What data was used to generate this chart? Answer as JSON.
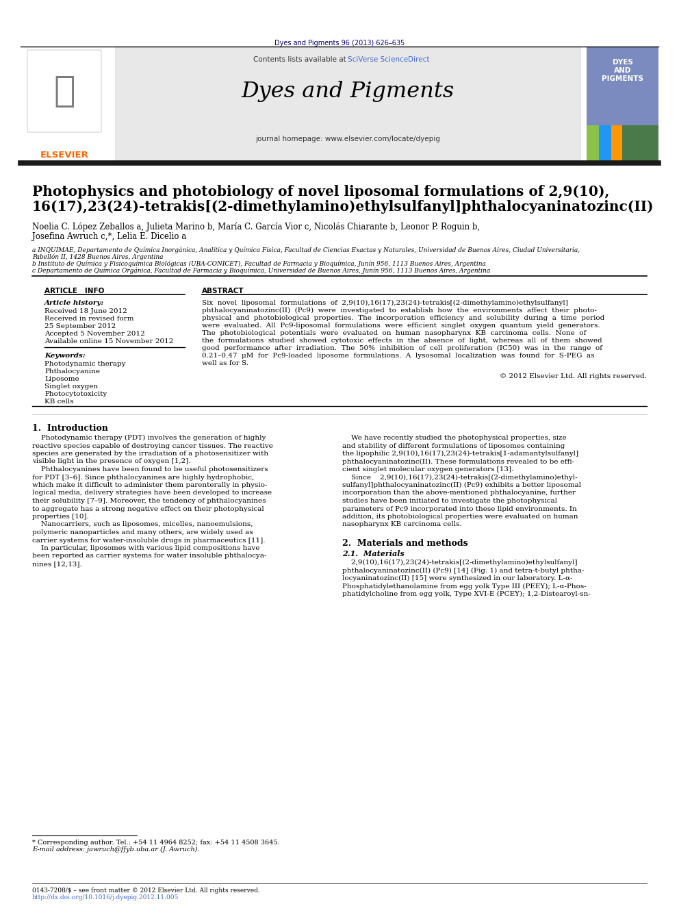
{
  "journal_ref": "Dyes and Pigments 96 (2013) 626–635",
  "journal_name": "Dyes and Pigments",
  "journal_homepage": "journal homepage: www.elsevier.com/locate/dyepig",
  "contents_text_pre": "Contents lists available at ",
  "contents_text_link": "SciVerse ScienceDirect",
  "elsevier_color": "#FF6600",
  "title_line1": "Photophysics and photobiology of novel liposomal formulations of 2,9(10),",
  "title_line2": "16(17),23(24)-tetrakis[(2-dimethylamino)ethylsulfanyl]phthalocyaninatozinc(II)",
  "authors": "Noelia C. López Zeballos a, Julieta Marino b, María C. García Vior c, Nicolás Chiarante b, Leonor P. Roguin b,",
  "authors2": "Josefina Awruch c,*, Lelia E. Dicelio a",
  "affil_a": "a INQUIMAE, Departamento de Química Inorgánica, Analítica y Química Física, Facultad de Ciencias Exactas y Naturales, Universidad de Buenos Aires, Ciudad Universitaria,",
  "affil_a2": "Pabellón II, 1428 Buenos Aires, Argentina",
  "affil_b": "b Instituto de Química y Fisicoquímica Biológicas (UBA-CONICET), Facultad de Farmacia y Bioquímica, Junín 956, 1113 Buenos Aires, Argentina",
  "affil_c": "c Departamento de Química Orgánica, Facultad de Farmacia y Bioquímica, Universidad de Buenos Aires, Junín 956, 1113 Buenos Aires, Argentina",
  "article_info_header": "ARTICLE   INFO",
  "abstract_header": "ABSTRACT",
  "article_history_label": "Article history:",
  "received1": "Received 18 June 2012",
  "received2": "Received in revised form",
  "received2b": "25 September 2012",
  "accepted": "Accepted 5 November 2012",
  "available": "Available online 15 November 2012",
  "keywords_label": "Keywords:",
  "keywords": [
    "Photodynamic therapy",
    "Phthalocyanine",
    "Liposome",
    "Singlet oxygen",
    "Photocytotoxicity",
    "KB cells"
  ],
  "abstract_lines": [
    "Six  novel  liposomal  formulations  of  2,9(10),16(17),23(24)-tetrakis[(2-dimethylamino)ethylsulfanyl]",
    "phthalocyaninatozinc(II)  (Pc9)  were  investigated  to  establish  how  the  environments  affect  their  photo-",
    "physical  and  photobiological  properties.  The  incorporation  efficiency  and  solubility  during  a  time  period",
    "were  evaluated.  All  Pc9-liposomal  formulations  were  efficient  singlet  oxygen  quantum  yield  generators.",
    "The  photobiological  potentials  were  evaluated  on  human  nasopharynx  KB  carcinoma  cells.  None  of",
    "the  formulations  studied  showed  cytotoxic  effects  in  the  absence  of  light,  whereas  all  of  them  showed",
    "good  performance  after  irradiation.  The  50%  inhibition  of  cell  proliferation  (IC50)  was  in  the  range  of",
    "0.21–0.47  μM  for  Pc9-loaded  liposome  formulations.  A  lysosomal  localization  was  found  for  S-PEG  as",
    "well as for S."
  ],
  "copyright": "© 2012 Elsevier Ltd. All rights reserved.",
  "section1_header": "1.  Introduction",
  "sec1_col1_lines": [
    "    Photodynamic therapy (PDT) involves the generation of highly",
    "reactive species capable of destroying cancer tissues. The reactive",
    "species are generated by the irradiation of a photosensitizer with",
    "visible light in the presence of oxygen [1,2].",
    "    Phthalocyanines have been found to be useful photosensitizers",
    "for PDT [3–6]. Since phthalocyanines are highly hydrophobic,",
    "which make it difficult to administer them parenterally in physio-",
    "logical media, delivery strategies have been developed to increase",
    "their solubility [7–9]. Moreover, the tendency of phthalocyanines",
    "to aggregate has a strong negative effect on their photophysical",
    "properties [10].",
    "    Nanocarriers, such as liposomes, micelles, nanoemulsions,",
    "polymeric nanoparticles and many others, are widely used as",
    "carrier systems for water-insoluble drugs in pharmaceutics [11].",
    "    In particular, liposomes with various lipid compositions have",
    "been reported as carrier systems for water insoluble phthalocya-",
    "nines [12,13]."
  ],
  "sec1_col2_lines": [
    "    We have recently studied the photophysical properties, size",
    "and stability of different formulations of liposomes containing",
    "the lipophilic 2,9(10),16(17),23(24)-tetrakis[1-adamantylsulfanyl]",
    "phthalocyaninatozinc(II). These formulations revealed to be effi-",
    "cient singlet molecular oxygen generators [13].",
    "    Since    2,9(10),16(17),23(24)-tetrakis[(2-dimethylamino)ethyl-",
    "sulfanyl]phthalocyaninatozinc(II) (Pc9) exhibits a better liposomal",
    "incorporation than the above-mentioned phthalocyanine, further",
    "studies have been initiated to investigate the photophysical",
    "parameters of Pc9 incorporated into these lipid environments. In",
    "addition, its photobiological properties were evaluated on human",
    "nasopharynx KB carcinoma cells."
  ],
  "section2_header": "2.  Materials and methods",
  "section21_header": "2.1.  Materials",
  "section21_lines": [
    "    2,9(10),16(17),23(24)-tetrakis[(2-dimethylamino)ethylsulfanyl]",
    "phthalocyaninatozinc(II) (Pc9) [14] (Fig. 1) and tetra-t-butyl phtha-",
    "locyaninatozinc(II) [15] were synthesized in our laboratory. L-α-",
    "Phosphatidylethanolamine from egg yolk Type III (PEEY); L-α-Phos-",
    "phatidylcholine from egg yolk, Type XVI-E (PCEY); 1,2-Distearoyl-sn-"
  ],
  "footnote1": "* Corresponding author. Tel.: +54 11 4964 8252; fax: +54 11 4508 3645.",
  "footnote2": "E-mail address: jawruch@ffyb.uba.ar (J. Awruch).",
  "footer1": "0143-7208/$ – see front matter © 2012 Elsevier Ltd. All rights reserved.",
  "footer2": "http://dx.doi.org/10.1016/j.dyepig.2012.11.005",
  "bg_color": "#FFFFFF",
  "dark_navy": "#000080",
  "link_color": "#4169E1",
  "orange_color": "#FF6600",
  "gray_header": "#E8E8E8",
  "cover_bg": "#7B8BC0"
}
